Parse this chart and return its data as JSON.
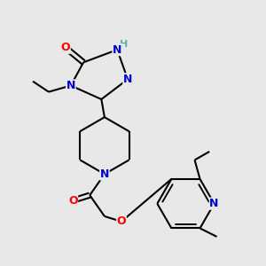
{
  "bg_color": "#e8e8e8",
  "atom_colors": {
    "N": "#0000cc",
    "O": "#ff0000",
    "H": "#5fafaf",
    "C": "#000000"
  },
  "bond_color": "#000000",
  "bond_width": 1.5
}
